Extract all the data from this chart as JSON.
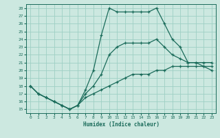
{
  "xlabel": "Humidex (Indice chaleur)",
  "background_color": "#cce8e0",
  "grid_color": "#9ecfc4",
  "line_color": "#1a6b5a",
  "x_ticks": [
    0,
    1,
    2,
    3,
    4,
    5,
    6,
    7,
    8,
    9,
    10,
    11,
    12,
    13,
    14,
    15,
    16,
    17,
    18,
    19,
    20,
    21,
    22,
    23
  ],
  "y_ticks": [
    15,
    16,
    17,
    18,
    19,
    20,
    21,
    22,
    23,
    24,
    25,
    26,
    27,
    28
  ],
  "xlim": [
    -0.5,
    23.5
  ],
  "ylim": [
    14.5,
    28.5
  ],
  "line1_y": [
    18,
    17,
    16.5,
    16,
    15.5,
    15,
    15.5,
    17.5,
    20,
    24.5,
    28,
    27.5,
    27.5,
    27.5,
    27.5,
    27.5,
    28,
    26,
    24,
    23,
    21,
    21,
    20.5,
    20
  ],
  "line2_y": [
    18,
    17,
    16.5,
    16,
    15.5,
    15,
    15.5,
    17,
    18,
    19.5,
    22,
    23,
    23.5,
    23.5,
    23.5,
    23.5,
    24,
    23,
    22,
    21.5,
    21,
    21,
    21,
    21
  ],
  "line3_y": [
    18,
    17,
    16.5,
    16,
    15.5,
    15,
    15.5,
    16.5,
    17,
    17.5,
    18,
    18.5,
    19,
    19.5,
    19.5,
    19.5,
    20,
    20,
    20.5,
    20.5,
    20.5,
    20.5,
    20.5,
    20.5
  ]
}
